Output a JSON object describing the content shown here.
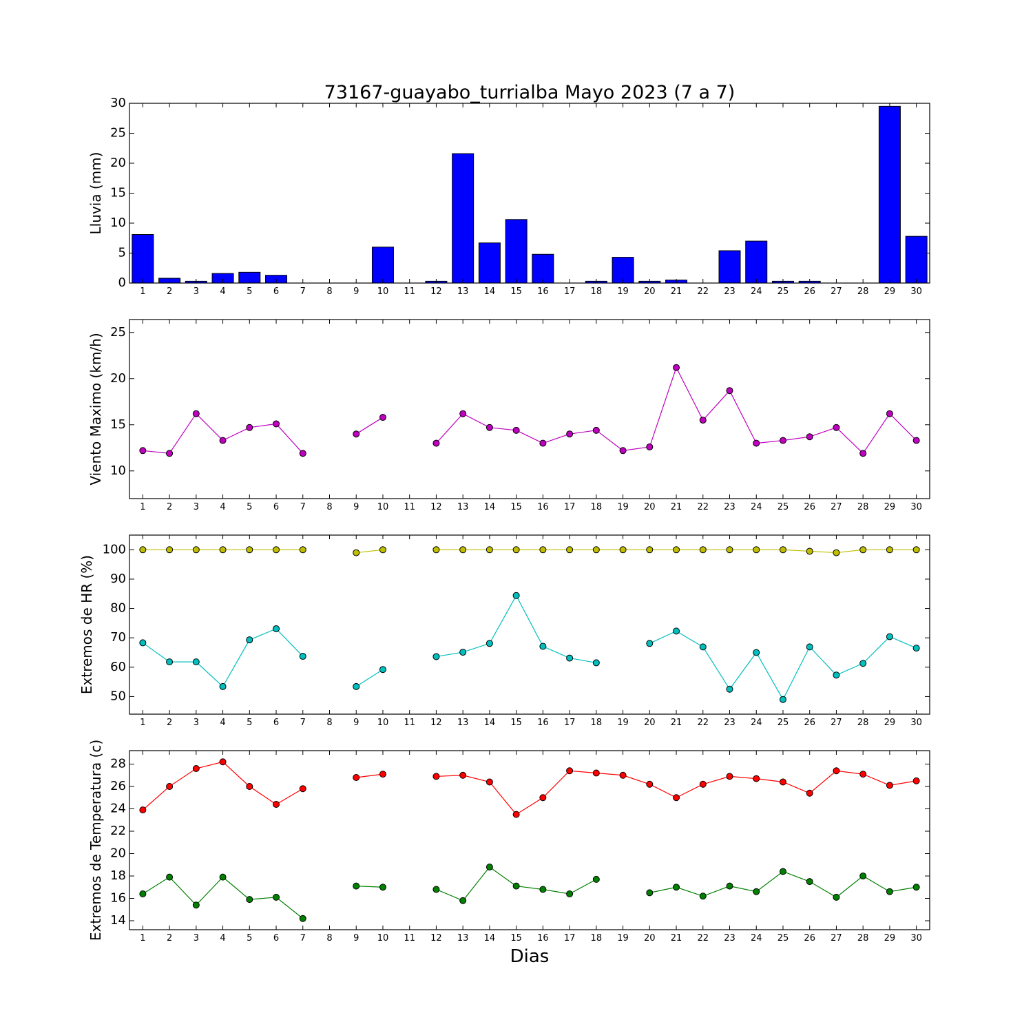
{
  "title": "73167-guayabo_turrialba Mayo 2023  (7 a 7)",
  "xlabel": "Dias",
  "days": [
    1,
    2,
    3,
    4,
    5,
    6,
    7,
    8,
    9,
    10,
    11,
    12,
    13,
    14,
    15,
    16,
    17,
    18,
    19,
    20,
    21,
    22,
    23,
    24,
    25,
    26,
    27,
    28,
    29,
    30
  ],
  "chart_data": [
    {
      "type": "bar",
      "ylabel": "Lluvia (mm)",
      "ylim": [
        0,
        30
      ],
      "yticks": [
        0,
        5,
        10,
        15,
        20,
        25,
        30
      ],
      "categories": [
        1,
        2,
        3,
        4,
        5,
        6,
        7,
        8,
        9,
        10,
        11,
        12,
        13,
        14,
        15,
        16,
        17,
        18,
        19,
        20,
        21,
        22,
        23,
        24,
        25,
        26,
        27,
        28,
        29,
        30
      ],
      "series": [
        {
          "color": "#0000ff",
          "values": [
            8.1,
            0.8,
            0.3,
            1.6,
            1.8,
            1.3,
            0.0,
            0.0,
            0.0,
            6.0,
            0.0,
            0.3,
            21.6,
            6.7,
            10.6,
            4.8,
            0.0,
            0.3,
            4.3,
            0.3,
            0.5,
            0.0,
            5.4,
            7.0,
            0.3,
            0.3,
            0.0,
            0.0,
            29.5,
            7.8
          ]
        }
      ]
    },
    {
      "type": "line",
      "ylabel": "Viento Maximo (km/h)",
      "ylim": [
        7,
        26.4
      ],
      "yticks": [
        10,
        15,
        20,
        25
      ],
      "x": [
        1,
        2,
        3,
        4,
        5,
        6,
        7,
        8,
        9,
        10,
        11,
        12,
        13,
        14,
        15,
        16,
        17,
        18,
        19,
        20,
        21,
        22,
        23,
        24,
        25,
        26,
        27,
        28,
        29,
        30
      ],
      "series": [
        {
          "color": "#bf00bf",
          "values": [
            12.2,
            11.9,
            16.2,
            13.3,
            14.7,
            15.1,
            11.9,
            null,
            14.0,
            15.8,
            null,
            13.0,
            16.2,
            14.7,
            14.4,
            13.0,
            14.0,
            14.4,
            12.2,
            12.6,
            21.2,
            15.5,
            18.7,
            13.0,
            13.3,
            13.7,
            14.7,
            11.9,
            16.2,
            13.3
          ]
        }
      ]
    },
    {
      "type": "line",
      "ylabel": "Extremos de HR (%)",
      "ylim": [
        44,
        105
      ],
      "yticks": [
        50,
        60,
        70,
        80,
        90,
        100
      ],
      "x": [
        1,
        2,
        3,
        4,
        5,
        6,
        7,
        8,
        9,
        10,
        11,
        12,
        13,
        14,
        15,
        16,
        17,
        18,
        19,
        20,
        21,
        22,
        23,
        24,
        25,
        26,
        27,
        28,
        29,
        30
      ],
      "series": [
        {
          "color": "#bfbf00",
          "values": [
            100,
            100,
            100,
            100,
            100,
            100,
            100,
            null,
            99,
            100,
            null,
            100,
            100,
            100,
            100,
            100,
            100,
            100,
            100,
            100,
            100,
            100,
            100,
            100,
            100,
            99.5,
            99,
            100,
            100,
            100
          ]
        },
        {
          "color": "#00bfbf",
          "values": [
            68.3,
            61.8,
            61.8,
            53.4,
            69.3,
            73.1,
            63.7,
            null,
            53.4,
            59.2,
            null,
            63.6,
            65.1,
            68.1,
            84.4,
            67.1,
            63.1,
            61.5,
            null,
            68.1,
            72.3,
            66.9,
            52.5,
            65.0,
            49.0,
            66.9,
            57.3,
            61.3,
            70.4,
            66.5
          ]
        }
      ]
    },
    {
      "type": "line",
      "ylabel": "Extremos de Temperatura (c)",
      "ylim": [
        13.2,
        29.2
      ],
      "yticks": [
        14,
        16,
        18,
        20,
        22,
        24,
        26,
        28
      ],
      "x": [
        1,
        2,
        3,
        4,
        5,
        6,
        7,
        8,
        9,
        10,
        11,
        12,
        13,
        14,
        15,
        16,
        17,
        18,
        19,
        20,
        21,
        22,
        23,
        24,
        25,
        26,
        27,
        28,
        29,
        30
      ],
      "series": [
        {
          "color": "#ff0000",
          "values": [
            23.9,
            26.0,
            27.6,
            28.2,
            26.0,
            24.4,
            25.8,
            null,
            26.8,
            27.1,
            null,
            26.9,
            27.0,
            26.4,
            23.5,
            25.0,
            27.4,
            27.2,
            27.0,
            26.2,
            25.0,
            26.2,
            26.9,
            26.7,
            26.4,
            25.4,
            27.4,
            27.1,
            26.1,
            26.5
          ]
        },
        {
          "color": "#008000",
          "values": [
            16.4,
            17.9,
            15.4,
            17.9,
            15.9,
            16.1,
            14.2,
            null,
            17.1,
            17.0,
            null,
            16.8,
            15.8,
            18.8,
            17.1,
            16.8,
            16.4,
            17.7,
            null,
            16.5,
            17.0,
            16.2,
            17.1,
            16.6,
            18.4,
            17.5,
            16.1,
            18.0,
            16.6,
            17.0
          ]
        }
      ]
    }
  ]
}
